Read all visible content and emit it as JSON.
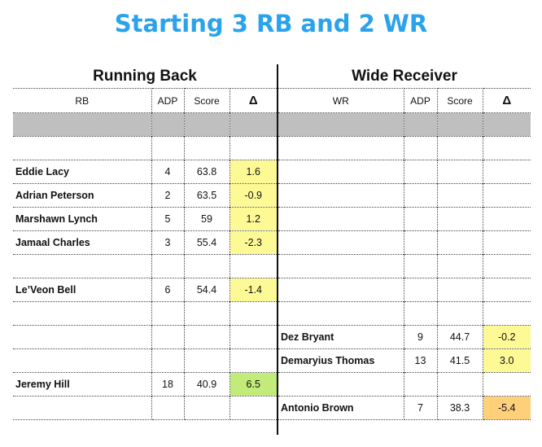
{
  "title": "Starting 3 RB and 2 WR",
  "rb_section": {
    "heading": "Running Back",
    "headers": {
      "name": "RB",
      "adp": "ADP",
      "score": "Score",
      "delta": "Δ"
    },
    "rows": [
      {
        "name": "",
        "adp": "",
        "score": "",
        "delta": "",
        "hl": "gray"
      },
      {
        "name": "",
        "adp": "",
        "score": "",
        "delta": "",
        "hl": ""
      },
      {
        "name": "Eddie Lacy",
        "adp": "4",
        "score": "63.8",
        "delta": "1.6",
        "hl": "yellow"
      },
      {
        "name": "Adrian Peterson",
        "adp": "2",
        "score": "63.5",
        "delta": "-0.9",
        "hl": "yellow"
      },
      {
        "name": "Marshawn Lynch",
        "adp": "5",
        "score": "59",
        "delta": "1.2",
        "hl": "yellow"
      },
      {
        "name": "Jamaal Charles",
        "adp": "3",
        "score": "55.4",
        "delta": "-2.3",
        "hl": "yellow"
      },
      {
        "name": "",
        "adp": "",
        "score": "",
        "delta": "",
        "hl": ""
      },
      {
        "name": "Le’Veon Bell",
        "adp": "6",
        "score": "54.4",
        "delta": "-1.4",
        "hl": "yellow"
      },
      {
        "name": "",
        "adp": "",
        "score": "",
        "delta": "",
        "hl": ""
      },
      {
        "name": "",
        "adp": "",
        "score": "",
        "delta": "",
        "hl": ""
      },
      {
        "name": "",
        "adp": "",
        "score": "",
        "delta": "",
        "hl": ""
      },
      {
        "name": "Jeremy Hill",
        "adp": "18",
        "score": "40.9",
        "delta": "6.5",
        "hl": "green"
      },
      {
        "name": "",
        "adp": "",
        "score": "",
        "delta": "",
        "hl": ""
      }
    ]
  },
  "wr_section": {
    "heading": "Wide Receiver",
    "headers": {
      "name": "WR",
      "adp": "ADP",
      "score": "Score",
      "delta": "Δ"
    },
    "rows": [
      {
        "name": "",
        "adp": "",
        "score": "",
        "delta": "",
        "hl": "gray"
      },
      {
        "name": "",
        "adp": "",
        "score": "",
        "delta": "",
        "hl": ""
      },
      {
        "name": "",
        "adp": "",
        "score": "",
        "delta": "",
        "hl": ""
      },
      {
        "name": "",
        "adp": "",
        "score": "",
        "delta": "",
        "hl": ""
      },
      {
        "name": "",
        "adp": "",
        "score": "",
        "delta": "",
        "hl": ""
      },
      {
        "name": "",
        "adp": "",
        "score": "",
        "delta": "",
        "hl": ""
      },
      {
        "name": "",
        "adp": "",
        "score": "",
        "delta": "",
        "hl": ""
      },
      {
        "name": "",
        "adp": "",
        "score": "",
        "delta": "",
        "hl": ""
      },
      {
        "name": "",
        "adp": "",
        "score": "",
        "delta": "",
        "hl": ""
      },
      {
        "name": "Dez Bryant",
        "adp": "9",
        "score": "44.7",
        "delta": "-0.2",
        "hl": "yellow"
      },
      {
        "name": "Demaryius Thomas",
        "adp": "13",
        "score": "41.5",
        "delta": "3.0",
        "hl": "yellow"
      },
      {
        "name": "",
        "adp": "",
        "score": "",
        "delta": "",
        "hl": ""
      },
      {
        "name": "Antonio Brown",
        "adp": "7",
        "score": "38.3",
        "delta": "-5.4",
        "hl": "orange"
      }
    ]
  }
}
